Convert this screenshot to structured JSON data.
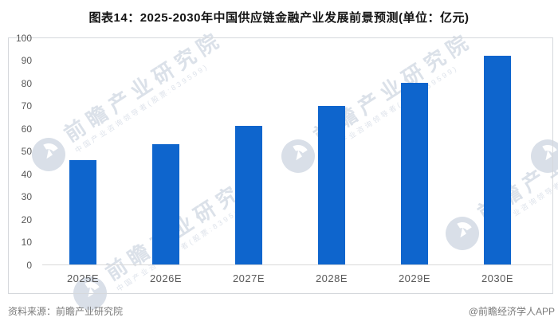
{
  "title": "图表14：2025-2030年中国供应链金融产业发展前景预测(单位：亿元)",
  "chart_data": {
    "type": "bar",
    "figure_label": "图表14",
    "title": "2025-2030年中国供应链金融产业发展前景预测",
    "unit": "亿元",
    "categories": [
      "2025E",
      "2026E",
      "2027E",
      "2028E",
      "2029E",
      "2030E"
    ],
    "values": [
      46,
      53,
      61,
      70,
      80,
      92
    ],
    "xlabel": "",
    "ylabel": "",
    "ylim": [
      0,
      100
    ],
    "y_ticks": [
      0,
      10,
      20,
      30,
      40,
      50,
      60,
      70,
      80,
      90,
      100
    ],
    "bar_color": "#0e65cd",
    "grid": false,
    "legend": false
  },
  "watermark": {
    "text": "前瞻产业研究院",
    "subtext": "中国产业咨询领导者(股票:839599)"
  },
  "footer": {
    "source": "资料来源：前瞻产业研究院",
    "credit": "@前瞻经济学人APP"
  }
}
